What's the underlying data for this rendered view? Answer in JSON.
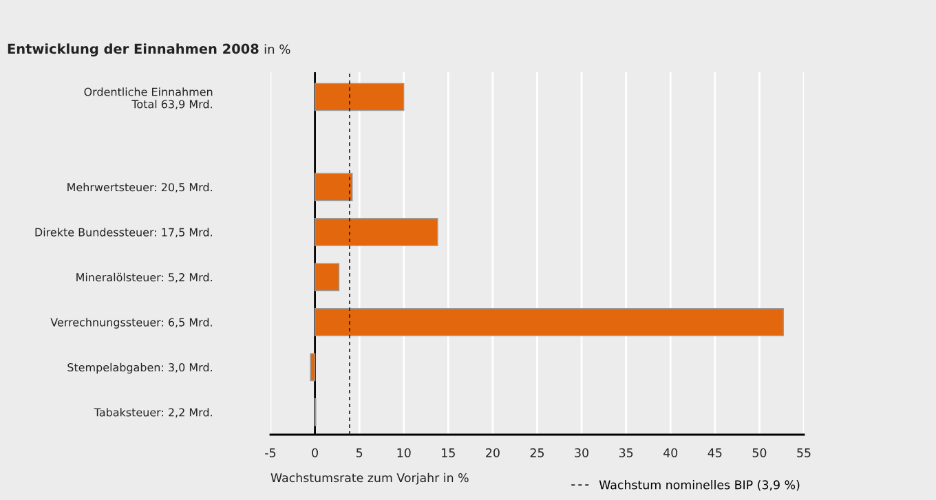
{
  "chart_data": {
    "type": "bar",
    "orientation": "horizontal",
    "title": "Entwicklung der Einnahmen 2008",
    "subtitle": "in %",
    "xlabel": "Wachstumsrate zum Vorjahr in %",
    "categories": [
      "Ordentliche Einnahmen\nTotal 63,9 Mrd.",
      null,
      "Mehrwertsteuer: 20,5 Mrd.",
      "Direkte Bundessteuer: 17,5 Mrd.",
      "Mineralölsteuer: 5,2 Mrd.",
      "Verrechnungssteuer: 6,5 Mrd.",
      "Stempelabgaben: 3,0 Mrd.",
      "Tabaksteuer: 2,2 Mrd."
    ],
    "values": [
      10.0,
      null,
      4.2,
      13.8,
      2.7,
      52.7,
      -0.5,
      0.1
    ],
    "color": "#e3670c",
    "xlim": [
      -5,
      55
    ],
    "xticks": [
      -5,
      0,
      5,
      10,
      15,
      20,
      25,
      30,
      35,
      40,
      45,
      50,
      55
    ],
    "grid": "x",
    "ref_lines": [
      {
        "axis": "x",
        "value": 3.9,
        "label": "Wachstum nominelles BIP (3,9 %)",
        "color": "#222222",
        "line_style": "dashed"
      }
    ]
  }
}
